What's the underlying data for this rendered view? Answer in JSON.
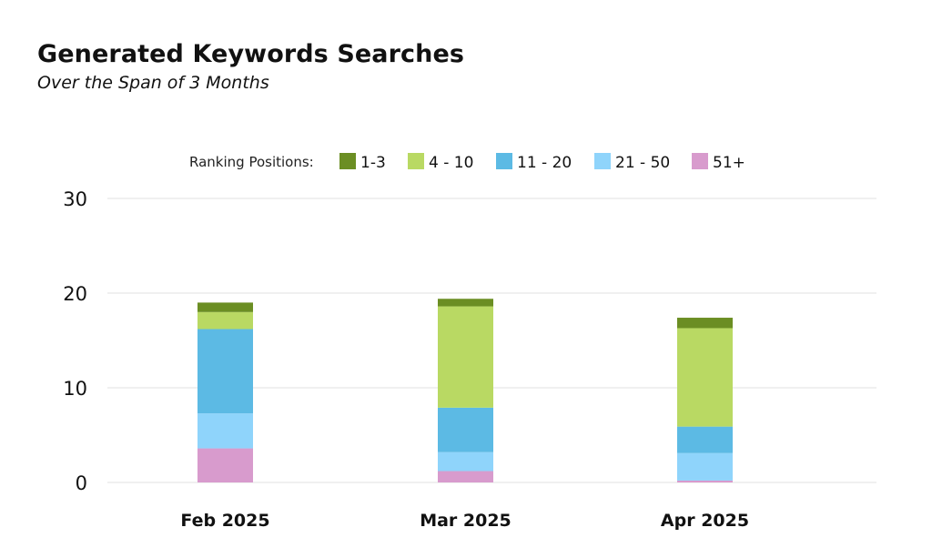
{
  "chart_data": {
    "type": "bar",
    "stacked": true,
    "title": "Generated Keywords Searches",
    "subtitle": "Over the Span of 3 Months",
    "legend_label": "Ranking Positions:",
    "legend_position": "top-center",
    "categories": [
      "Feb 2025",
      "Mar 2025",
      "Apr 2025"
    ],
    "series": [
      {
        "name": "51+",
        "color": "#D89BCD",
        "values": [
          3.6,
          1.2,
          0.2
        ]
      },
      {
        "name": "21 - 50",
        "color": "#8FD4FB",
        "values": [
          3.7,
          2.0,
          2.9
        ]
      },
      {
        "name": "11 - 20",
        "color": "#5CBAE4",
        "values": [
          8.9,
          4.7,
          2.8
        ]
      },
      {
        "name": "4 - 10",
        "color": "#B9D963",
        "values": [
          1.8,
          10.7,
          10.4
        ]
      },
      {
        "name": "1-3",
        "color": "#6B8E23",
        "values": [
          1.0,
          0.8,
          1.1
        ]
      }
    ],
    "legend_order": [
      "1-3",
      "4 - 10",
      "11 - 20",
      "21 - 50",
      "51+"
    ],
    "yticks": [
      "0",
      "10",
      "20",
      "30"
    ],
    "ylim": [
      0,
      30
    ],
    "grid": "horizontal",
    "xlabel": "",
    "ylabel": ""
  }
}
